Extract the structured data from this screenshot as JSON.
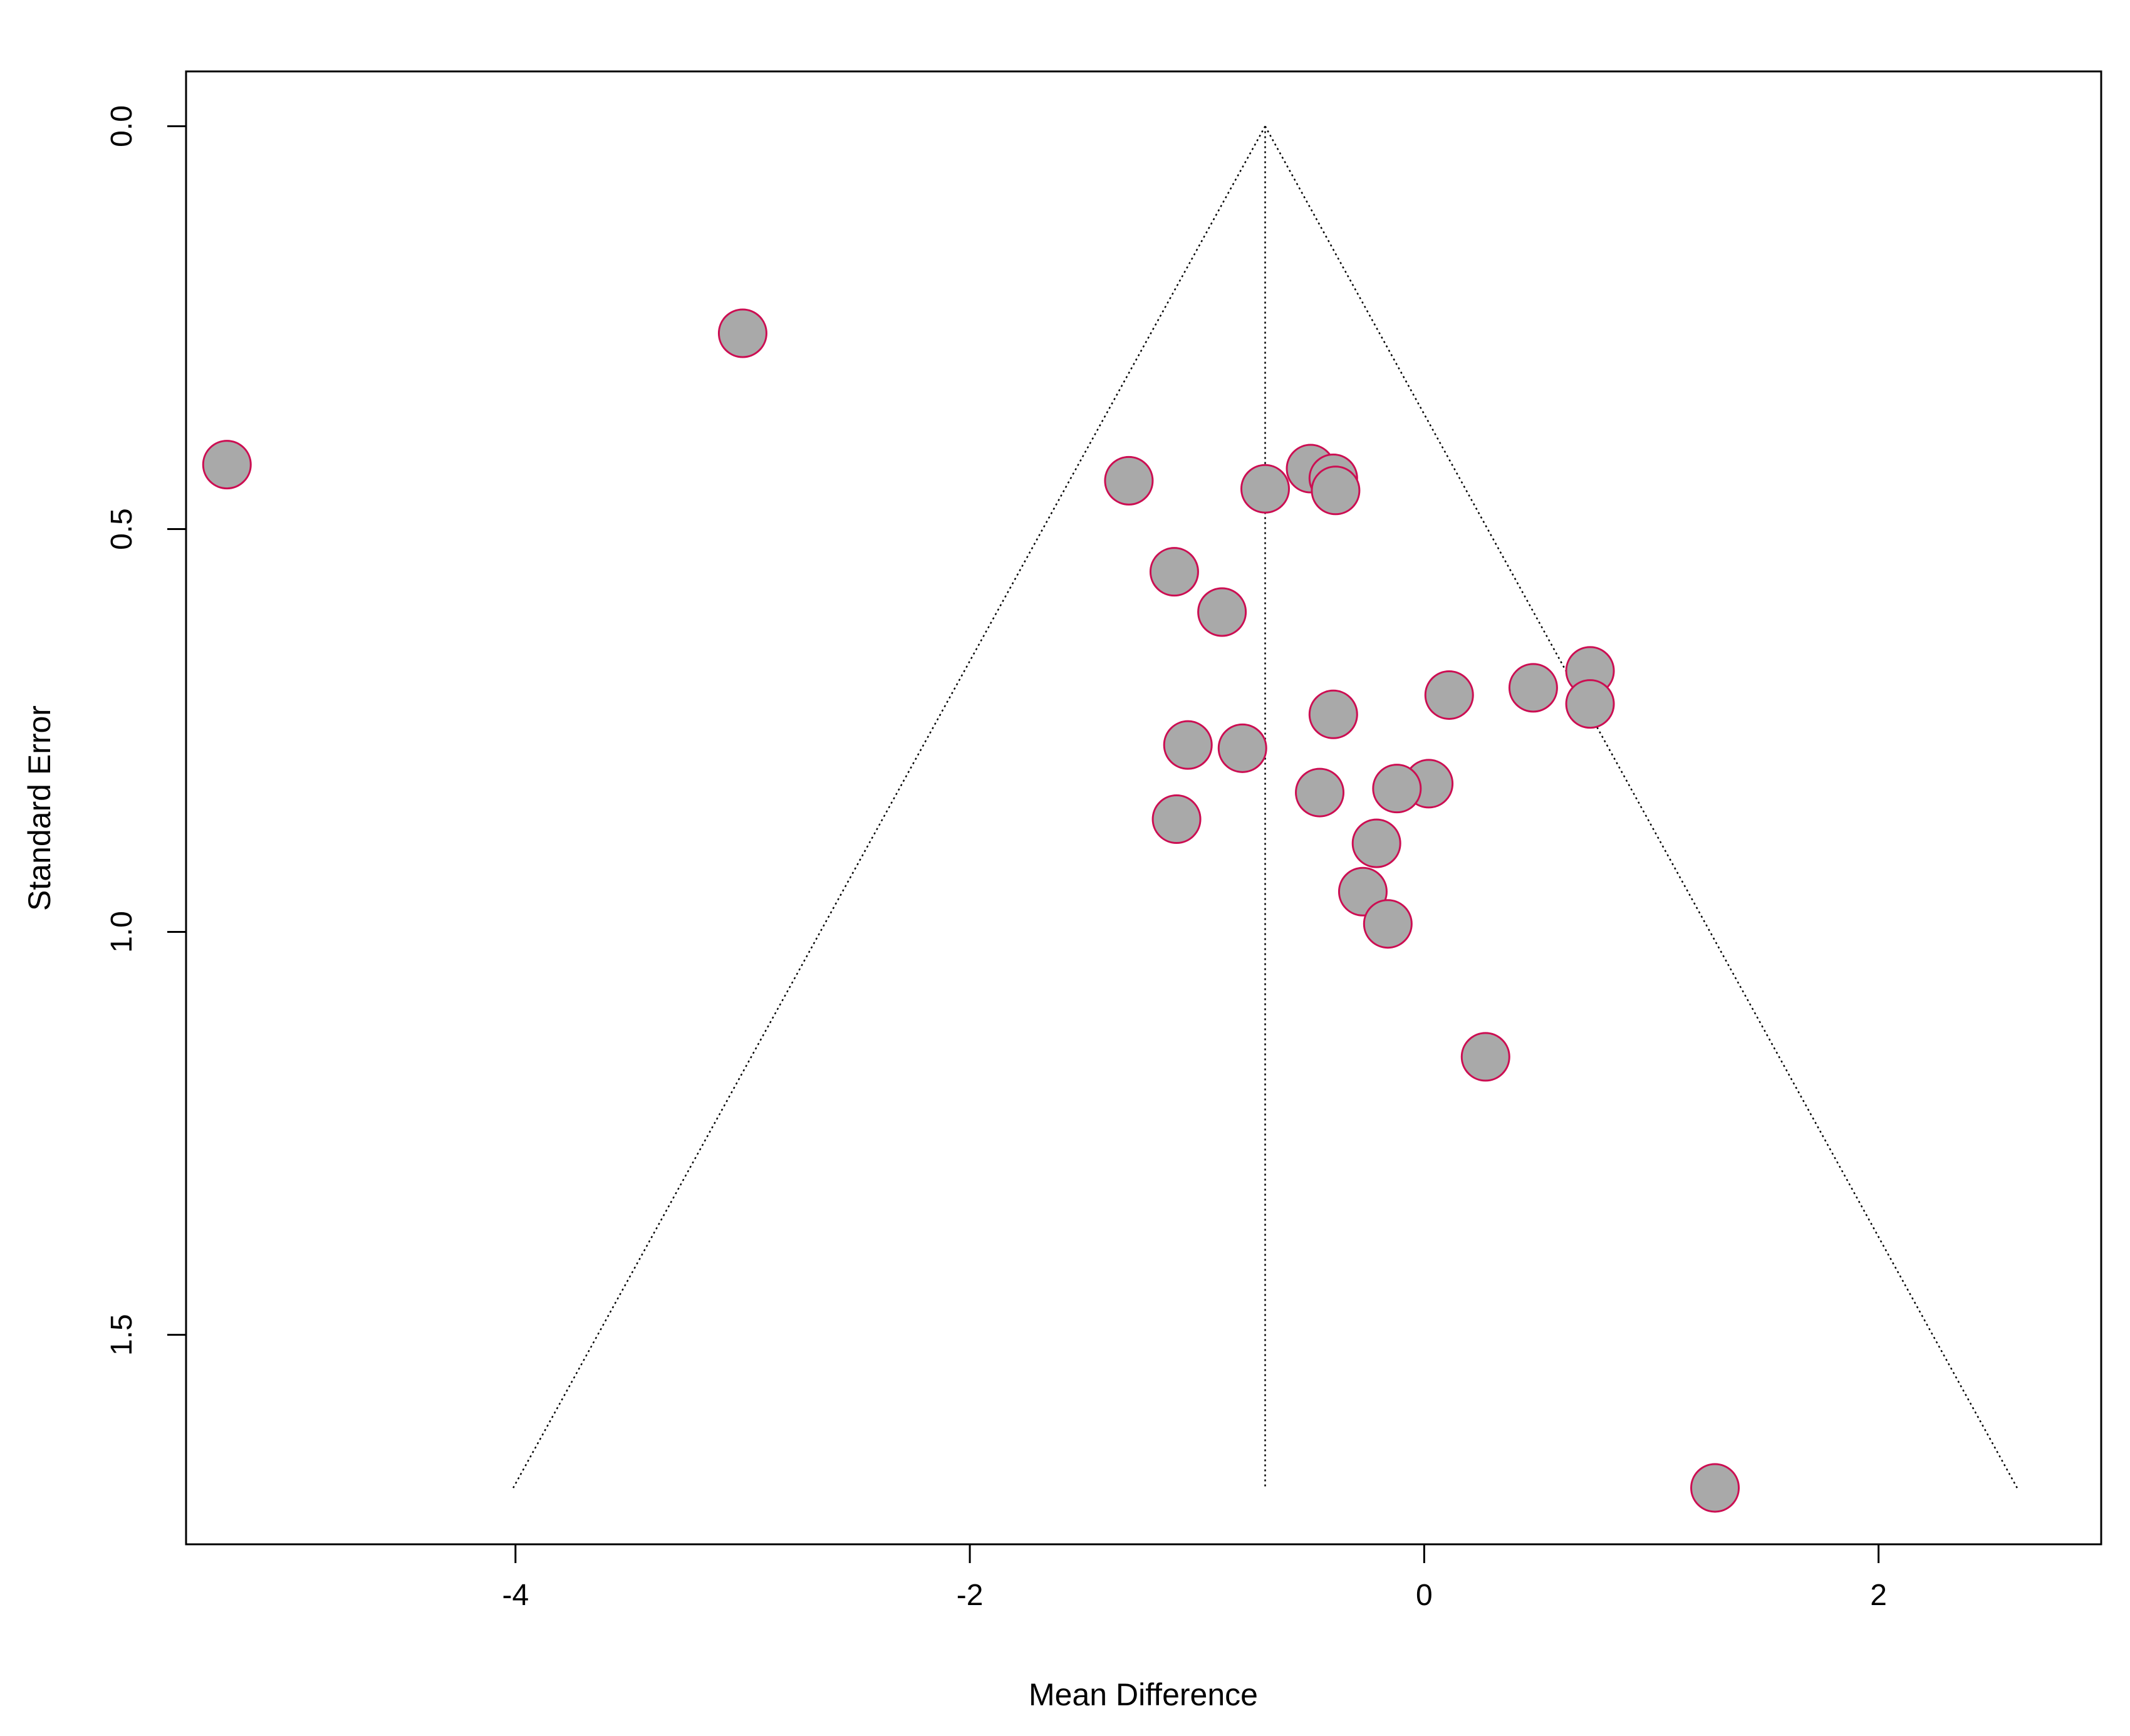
{
  "chart_data": {
    "type": "scatter",
    "title": "",
    "xlabel": "Mean Difference",
    "ylabel": "Standard Error",
    "xlim": [
      -5.45,
      2.98
    ],
    "ylim": [
      1.76,
      -0.068
    ],
    "y_reversed": true,
    "x_ticks": [
      -4,
      -2,
      0,
      2
    ],
    "x_tick_labels": [
      "-4",
      "-2",
      "0",
      "2"
    ],
    "y_ticks": [
      0.0,
      0.5,
      1.0,
      1.5
    ],
    "y_tick_labels": [
      "0.0",
      "0.5",
      "1.0",
      "1.5"
    ],
    "grid": false,
    "legend": "none",
    "colors": {
      "point_fill": "#a9a9a9",
      "point_stroke": "#cc0e52",
      "line": "#000000",
      "axis": "#000000"
    },
    "funnel": {
      "center": -0.7,
      "apex_se": 0.0,
      "base_se": 1.69,
      "left_base": -4.01,
      "right_base": 2.61
    },
    "points": [
      {
        "x": -3.0,
        "y": 0.257
      },
      {
        "x": -5.27,
        "y": 0.42
      },
      {
        "x": -1.3,
        "y": 0.44
      },
      {
        "x": -0.5,
        "y": 0.425
      },
      {
        "x": -0.4,
        "y": 0.437
      },
      {
        "x": -0.7,
        "y": 0.45
      },
      {
        "x": -0.39,
        "y": 0.452
      },
      {
        "x": -1.1,
        "y": 0.553
      },
      {
        "x": -0.89,
        "y": 0.603
      },
      {
        "x": 0.73,
        "y": 0.676
      },
      {
        "x": 0.48,
        "y": 0.697
      },
      {
        "x": 0.11,
        "y": 0.706
      },
      {
        "x": 0.73,
        "y": 0.717
      },
      {
        "x": -0.4,
        "y": 0.73
      },
      {
        "x": -1.04,
        "y": 0.768
      },
      {
        "x": -0.8,
        "y": 0.772
      },
      {
        "x": 0.02,
        "y": 0.816
      },
      {
        "x": -0.12,
        "y": 0.822
      },
      {
        "x": -0.46,
        "y": 0.827
      },
      {
        "x": -1.09,
        "y": 0.86
      },
      {
        "x": -0.21,
        "y": 0.89
      },
      {
        "x": -0.27,
        "y": 0.95
      },
      {
        "x": -0.16,
        "y": 0.99
      },
      {
        "x": 0.27,
        "y": 1.155
      },
      {
        "x": 1.28,
        "y": 1.69
      }
    ]
  }
}
